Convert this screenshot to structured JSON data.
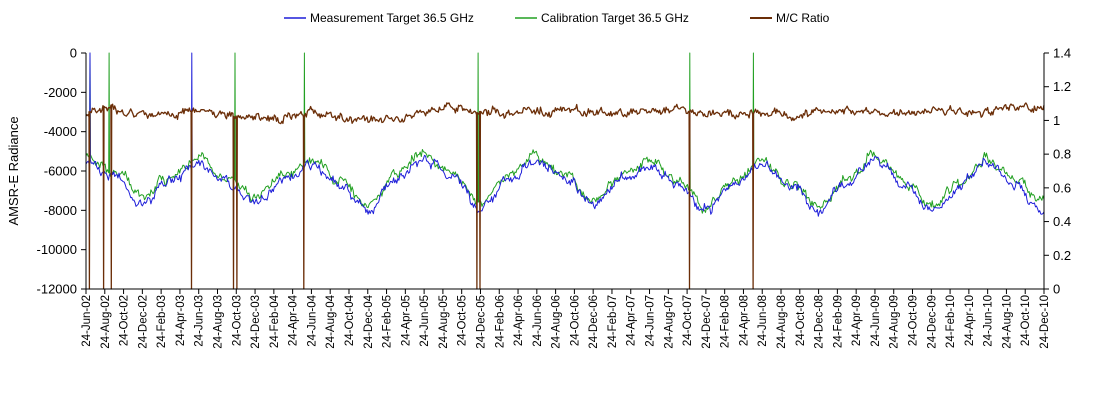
{
  "chart_data": {
    "type": "line",
    "title": "",
    "ylabel": "AMSR-E Radiance",
    "y2label": "",
    "ylim": [
      -12000,
      0
    ],
    "y2lim": [
      0,
      1.4
    ],
    "yticks": [
      "0",
      "-2000",
      "-4000",
      "-6000",
      "-8000",
      "-10000",
      "-12000"
    ],
    "y2ticks": [
      "1.4",
      "1.2",
      "1",
      "0.8",
      "0.6",
      "0.4",
      "0.2",
      "0"
    ],
    "xrange": [
      "2002-06-24",
      "2010-12-24"
    ],
    "xticks": [
      "24-Jun-02",
      "24-Aug-02",
      "24-Oct-02",
      "24-Dec-02",
      "24-Feb-03",
      "24-Apr-03",
      "24-Jun-03",
      "24-Aug-03",
      "24-Oct-03",
      "24-Dec-03",
      "24-Feb-04",
      "24-Apr-04",
      "24-Jun-04",
      "24-Aug-04",
      "24-Oct-04",
      "24-Dec-04",
      "24-Feb-05",
      "24-Apr-05",
      "24-Jun-05",
      "24-Aug-05",
      "24-Oct-05",
      "24-Dec-05",
      "24-Feb-06",
      "24-Apr-06",
      "24-Jun-06",
      "24-Aug-06",
      "24-Oct-06",
      "24-Dec-06",
      "24-Feb-07",
      "24-Apr-07",
      "24-Jun-07",
      "24-Aug-07",
      "24-Oct-07",
      "24-Dec-07",
      "24-Feb-08",
      "24-Apr-08",
      "24-Jun-08",
      "24-Aug-08",
      "24-Oct-08",
      "24-Dec-08",
      "24-Feb-09",
      "24-Apr-09",
      "24-Jun-09",
      "24-Aug-09",
      "24-Oct-09",
      "24-Dec-09",
      "24-Feb-10",
      "24-Apr-10",
      "24-Jun-10",
      "24-Aug-10",
      "24-Oct-10",
      "24-Dec-10"
    ],
    "grid": false,
    "legend_position": "top",
    "series": [
      {
        "name": "Measurement Target 36.5 GHz",
        "axis": "left",
        "color": "#1f1fd9",
        "x": [
          "2002-06-24",
          "2002-09-24",
          "2002-12-24",
          "2003-03-24",
          "2003-06-24",
          "2003-09-24",
          "2003-12-24",
          "2004-03-24",
          "2004-06-24",
          "2004-09-24",
          "2004-12-24",
          "2005-03-24",
          "2005-06-24",
          "2005-09-24",
          "2005-12-24",
          "2006-03-24",
          "2006-06-24",
          "2006-09-24",
          "2006-12-24",
          "2007-03-24",
          "2007-06-24",
          "2007-09-24",
          "2007-12-24",
          "2008-03-24",
          "2008-06-24",
          "2008-09-24",
          "2008-12-24",
          "2009-03-24",
          "2009-06-24",
          "2009-09-24",
          "2009-12-24",
          "2010-03-24",
          "2010-06-24",
          "2010-09-24",
          "2010-12-24"
        ],
        "values": [
          -5600,
          -6200,
          -7600,
          -6600,
          -5600,
          -6600,
          -7600,
          -6500,
          -5600,
          -6700,
          -8000,
          -6400,
          -5400,
          -6300,
          -7900,
          -6400,
          -5400,
          -6400,
          -7700,
          -6400,
          -5700,
          -6700,
          -8000,
          -6700,
          -5600,
          -6800,
          -8000,
          -6600,
          -5400,
          -6600,
          -8000,
          -6800,
          -5600,
          -6700,
          -8100
        ],
        "spikes": [
          [
            "2002-07-07",
            0
          ],
          [
            "2003-06-02",
            0
          ]
        ]
      },
      {
        "name": "Calibration Target 36.5 GHz",
        "axis": "left",
        "color": "#22a022",
        "x": [
          "2002-06-24",
          "2002-09-24",
          "2002-12-24",
          "2003-03-24",
          "2003-06-24",
          "2003-09-24",
          "2003-12-24",
          "2004-03-24",
          "2004-06-24",
          "2004-09-24",
          "2004-12-24",
          "2005-03-24",
          "2005-06-24",
          "2005-09-24",
          "2005-12-24",
          "2006-03-24",
          "2006-06-24",
          "2006-09-24",
          "2006-12-24",
          "2007-03-24",
          "2007-06-24",
          "2007-09-24",
          "2007-12-24",
          "2008-03-24",
          "2008-06-24",
          "2008-09-24",
          "2008-12-24",
          "2009-03-24",
          "2009-06-24",
          "2009-09-24",
          "2009-12-24",
          "2010-03-24",
          "2010-06-24",
          "2010-09-24",
          "2010-12-24"
        ],
        "values": [
          -5300,
          -6000,
          -7300,
          -6300,
          -5300,
          -6400,
          -7400,
          -6300,
          -5400,
          -6500,
          -7800,
          -6200,
          -5200,
          -6100,
          -7700,
          -6200,
          -5200,
          -6200,
          -7500,
          -6200,
          -5500,
          -6500,
          -7800,
          -6500,
          -5400,
          -6600,
          -7800,
          -6400,
          -5200,
          -6400,
          -7700,
          -6600,
          -5400,
          -6500,
          -7700
        ],
        "spikes": [
          [
            "2002-07-07",
            0
          ],
          [
            "2002-09-07",
            0
          ],
          [
            "2003-10-20",
            0
          ],
          [
            "2004-06-01",
            0
          ],
          [
            "2005-12-16",
            0
          ],
          [
            "2007-11-02",
            0
          ],
          [
            "2008-05-26",
            0
          ]
        ]
      },
      {
        "name": "M/C Ratio",
        "axis": "right",
        "color": "#6b2e08",
        "x": [
          "2002-06-24",
          "2002-09-24",
          "2002-12-24",
          "2003-03-24",
          "2003-06-24",
          "2003-09-24",
          "2003-12-24",
          "2004-03-24",
          "2004-06-24",
          "2004-09-24",
          "2004-12-24",
          "2005-03-24",
          "2005-06-24",
          "2005-09-24",
          "2005-12-24",
          "2006-03-24",
          "2006-06-24",
          "2006-09-24",
          "2006-12-24",
          "2007-03-24",
          "2007-06-24",
          "2007-09-24",
          "2007-12-24",
          "2008-03-24",
          "2008-06-24",
          "2008-09-24",
          "2008-12-24",
          "2009-03-24",
          "2009-06-24",
          "2009-09-24",
          "2009-12-24",
          "2010-03-24",
          "2010-06-24",
          "2010-09-24",
          "2010-12-24"
        ],
        "values": [
          1.05,
          1.07,
          1.04,
          1.03,
          1.06,
          1.04,
          1.02,
          1.01,
          1.04,
          1.02,
          1.0,
          1.01,
          1.05,
          1.08,
          1.05,
          1.04,
          1.05,
          1.06,
          1.05,
          1.04,
          1.06,
          1.05,
          1.04,
          1.03,
          1.05,
          1.03,
          1.05,
          1.06,
          1.05,
          1.04,
          1.06,
          1.05,
          1.06,
          1.08,
          1.07
        ],
        "spikes": [
          [
            "2002-07-05",
            0
          ],
          [
            "2002-08-20",
            0
          ],
          [
            "2002-09-14",
            0
          ],
          [
            "2003-06-01",
            0
          ],
          [
            "2003-10-15",
            0
          ],
          [
            "2003-10-26",
            0
          ],
          [
            "2004-05-30",
            0
          ],
          [
            "2005-12-12",
            0
          ],
          [
            "2005-12-22",
            0
          ],
          [
            "2007-11-01",
            0
          ],
          [
            "2008-05-25",
            0
          ]
        ]
      }
    ]
  }
}
